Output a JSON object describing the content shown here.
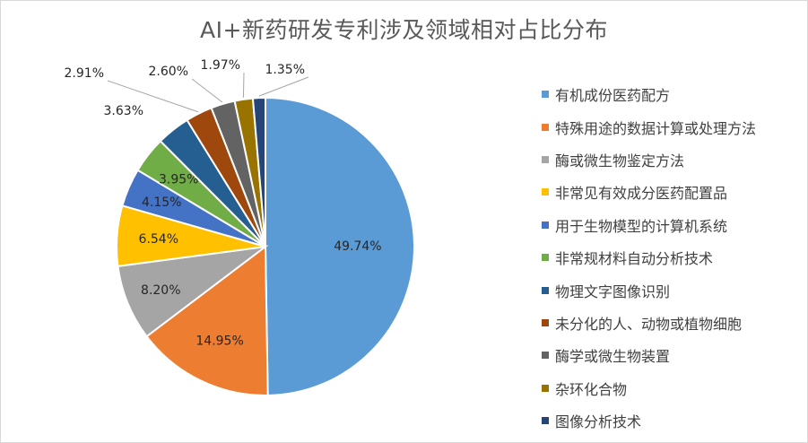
{
  "chart_data": {
    "type": "pie",
    "title": "AI+新药研发专利涉及领域相对占比分布",
    "slices": [
      {
        "label": "有机成份医药配方",
        "value": 49.74,
        "display": "49.74%",
        "color": "#5b9bd5"
      },
      {
        "label": "特殊用途的数据计算或处理方法",
        "value": 14.95,
        "display": "14.95%",
        "color": "#ed7d31"
      },
      {
        "label": "酶或微生物鉴定方法",
        "value": 8.2,
        "display": "8.20%",
        "color": "#a5a5a5"
      },
      {
        "label": "非常见有效成分医药配置品",
        "value": 6.54,
        "display": "6.54%",
        "color": "#ffc000"
      },
      {
        "label": "用于生物模型的计算机系统",
        "value": 4.15,
        "display": "4.15%",
        "color": "#4472c4"
      },
      {
        "label": "非常规材料自动分析技术",
        "value": 3.95,
        "display": "3.95%",
        "color": "#70ad47"
      },
      {
        "label": "物理文字图像识别",
        "value": 3.63,
        "display": "3.63%",
        "color": "#255e91"
      },
      {
        "label": "未分化的人、动物或植物细胞",
        "value": 2.91,
        "display": "2.91%",
        "color": "#9e480e"
      },
      {
        "label": "酶学或微生物装置",
        "value": 2.6,
        "display": "2.60%",
        "color": "#636363"
      },
      {
        "label": "杂环化合物",
        "value": 1.97,
        "display": "1.97%",
        "color": "#997300"
      },
      {
        "label": "图像分析技术",
        "value": 1.35,
        "display": "1.35%",
        "color": "#264478"
      }
    ],
    "legend_position": "right"
  }
}
